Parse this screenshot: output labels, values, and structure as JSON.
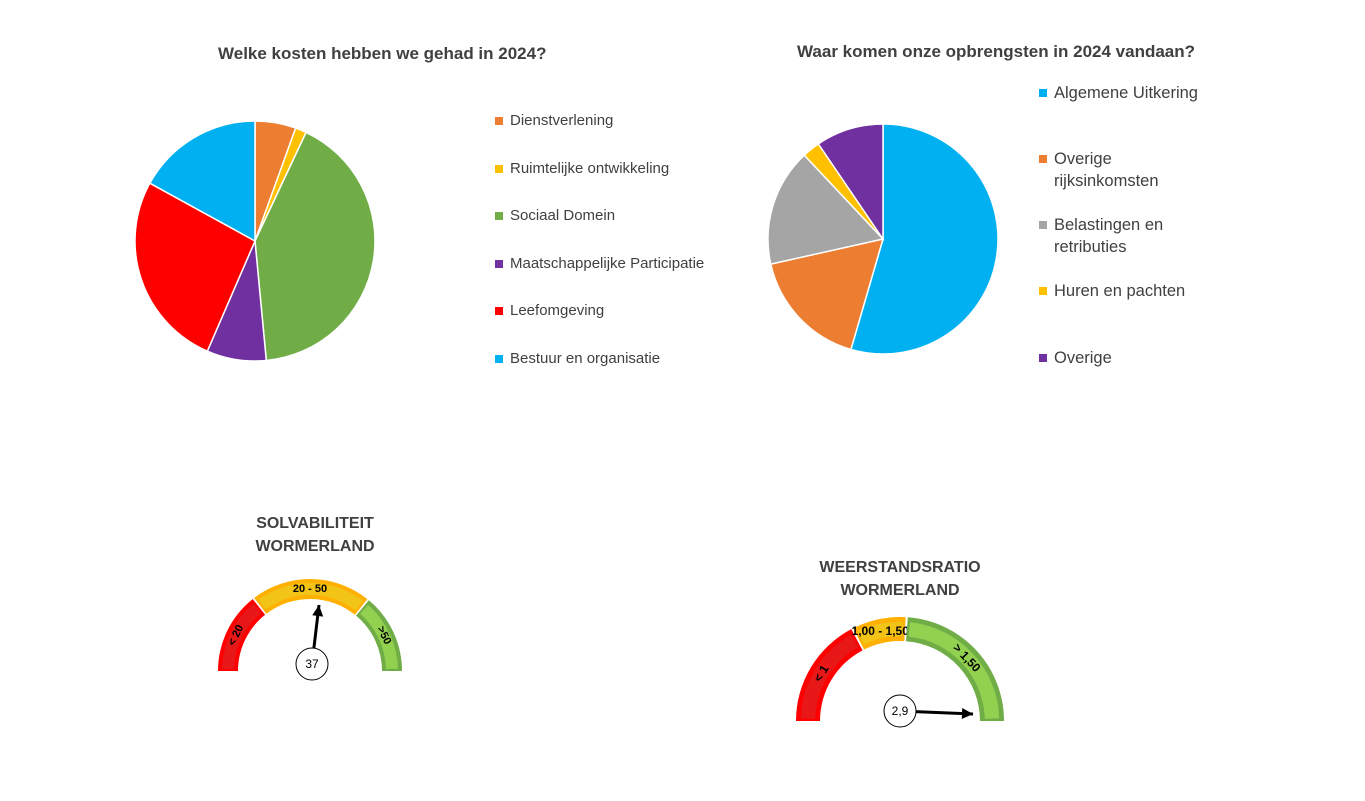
{
  "chart_data": [
    {
      "type": "pie",
      "title": "Welke kosten hebben we gehad in 2024?",
      "categories": [
        "Dienstverlening",
        "Ruimtelijke ontwikkeling",
        "Sociaal Domein",
        "Maatschappelijke Participatie",
        "Leefomgeving",
        "Bestuur en organisatie"
      ],
      "values": [
        5.5,
        1.5,
        41.5,
        8.0,
        26.5,
        17.0
      ],
      "colors": [
        "#ED7D31",
        "#FFC000",
        "#70AD47",
        "#7030A0",
        "#FF0000",
        "#00B0F0"
      ],
      "legend_position": "right"
    },
    {
      "type": "pie",
      "title": "Waar komen onze opbrengsten in 2024 vandaan?",
      "categories": [
        "Algemene Uitkering",
        "Overige rijksinkomsten",
        "Belastingen en retributies",
        "Huren en pachten",
        "Overige"
      ],
      "values": [
        54.5,
        17.0,
        16.5,
        2.5,
        9.5
      ],
      "colors": [
        "#00B0F0",
        "#ED7D31",
        "#A5A5A5",
        "#FFC000",
        "#7030A0"
      ],
      "legend_position": "right"
    },
    {
      "type": "gauge",
      "title_lines": [
        "SOLVABILITEIT",
        "WORMERLAND"
      ],
      "bands": [
        {
          "label": "< 20",
          "color": "#FF0000",
          "inner": "#E81818",
          "range": [
            0,
            20
          ]
        },
        {
          "label": "20 - 50",
          "color": "#FFB000",
          "inner": "#F2C417",
          "range": [
            20,
            50
          ]
        },
        {
          "label": ">50",
          "color": "#70AD47",
          "inner": "#92D050",
          "range": [
            50,
            70
          ]
        }
      ],
      "value": 37,
      "value_label": "37",
      "max": 70
    },
    {
      "type": "gauge",
      "title_lines": [
        "WEERSTANDSRATIO",
        "WORMERLAND"
      ],
      "bands": [
        {
          "label": "< 1",
          "color": "#FF0000",
          "inner": "#E81818",
          "range": [
            0,
            1
          ]
        },
        {
          "label": "1,00 - 1,50",
          "color": "#FFB000",
          "inner": "#F2C417",
          "range": [
            1,
            1.5
          ]
        },
        {
          "label": "> 1,50",
          "color": "#70AD47",
          "inner": "#92D050",
          "range": [
            1.5,
            2.9
          ]
        }
      ],
      "value": 2.9,
      "value_label": "2,9",
      "max": 2.9
    }
  ]
}
